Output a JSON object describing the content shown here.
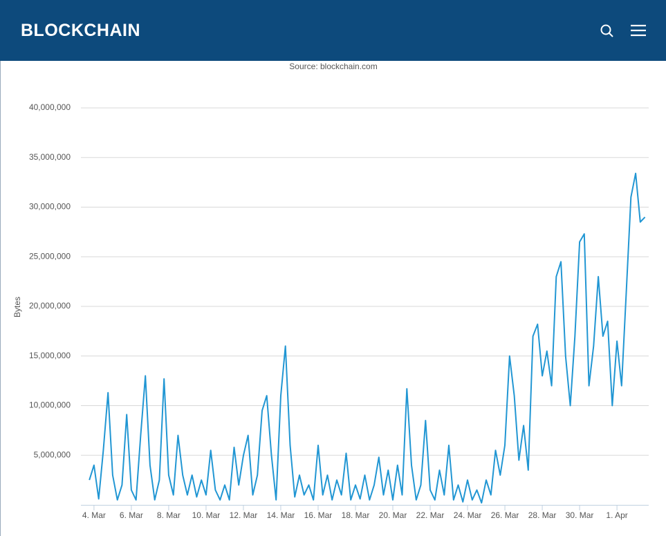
{
  "header": {
    "title": "BLOCKCHAIN"
  },
  "chart_data": {
    "type": "line",
    "subtitle": "Source: blockchain.com",
    "y_label": "Bytes",
    "xlim": [
      3.3,
      33.7
    ],
    "xticks": [
      {
        "value": 4,
        "label": "4. Mar"
      },
      {
        "value": 6,
        "label": "6. Mar"
      },
      {
        "value": 8,
        "label": "8. Mar"
      },
      {
        "value": 10,
        "label": "10. Mar"
      },
      {
        "value": 12,
        "label": "12. Mar"
      },
      {
        "value": 14,
        "label": "14. Mar"
      },
      {
        "value": 16,
        "label": "16. Mar"
      },
      {
        "value": 18,
        "label": "18. Mar"
      },
      {
        "value": 20,
        "label": "20. Mar"
      },
      {
        "value": 22,
        "label": "22. Mar"
      },
      {
        "value": 24,
        "label": "24. Mar"
      },
      {
        "value": 26,
        "label": "26. Mar"
      },
      {
        "value": 28,
        "label": "28. Mar"
      },
      {
        "value": 30,
        "label": "30. Mar"
      },
      {
        "value": 32,
        "label": "1. Apr"
      }
    ],
    "ylim": [
      0,
      40000000
    ],
    "yticks": [
      {
        "value": 5000000,
        "label": "5,000,000"
      },
      {
        "value": 10000000,
        "label": "10,000,000"
      },
      {
        "value": 15000000,
        "label": "15,000,000"
      },
      {
        "value": 20000000,
        "label": "20,000,000"
      },
      {
        "value": 25000000,
        "label": "25,000,000"
      },
      {
        "value": 30000000,
        "label": "30,000,000"
      },
      {
        "value": 35000000,
        "label": "35,000,000"
      },
      {
        "value": 40000000,
        "label": "40,000,000"
      }
    ],
    "grid": true,
    "x": [
      3.75,
      4,
      4.25,
      4.5,
      4.75,
      5,
      5.25,
      5.5,
      5.75,
      6,
      6.25,
      6.5,
      6.75,
      7,
      7.25,
      7.5,
      7.75,
      8,
      8.25,
      8.5,
      8.75,
      9,
      9.25,
      9.5,
      9.75,
      10,
      10.25,
      10.5,
      10.75,
      11,
      11.25,
      11.5,
      11.75,
      12,
      12.25,
      12.5,
      12.75,
      13,
      13.25,
      13.5,
      13.75,
      14,
      14.25,
      14.5,
      14.75,
      15,
      15.25,
      15.5,
      15.75,
      16,
      16.25,
      16.5,
      16.75,
      17,
      17.25,
      17.5,
      17.75,
      18,
      18.25,
      18.5,
      18.75,
      19,
      19.25,
      19.5,
      19.75,
      20,
      20.25,
      20.5,
      20.75,
      21,
      21.25,
      21.5,
      21.75,
      22,
      22.25,
      22.5,
      22.75,
      23,
      23.25,
      23.5,
      23.75,
      24,
      24.25,
      24.5,
      24.75,
      25,
      25.25,
      25.5,
      25.75,
      26,
      26.25,
      26.5,
      26.75,
      27,
      27.25,
      27.5,
      27.75,
      28,
      28.25,
      28.5,
      28.75,
      29,
      29.25,
      29.5,
      29.75,
      30,
      30.25,
      30.5,
      30.75,
      31,
      31.25,
      31.5,
      31.75,
      32,
      32.25,
      32.5,
      32.75,
      33,
      33.25,
      33.5
    ],
    "series": [
      {
        "name": "Bytes",
        "color": "#2196d3",
        "values": [
          2500000,
          4000000,
          600000,
          5500000,
          11300000,
          3000000,
          500000,
          2000000,
          9100000,
          1500000,
          500000,
          7000000,
          13000000,
          4000000,
          500000,
          2500000,
          12700000,
          3000000,
          1000000,
          7000000,
          3000000,
          1000000,
          3000000,
          800000,
          2500000,
          1000000,
          5500000,
          1500000,
          500000,
          2000000,
          500000,
          5800000,
          2000000,
          5000000,
          7000000,
          1000000,
          3000000,
          9500000,
          11000000,
          5000000,
          500000,
          11000000,
          16000000,
          6000000,
          800000,
          3000000,
          1000000,
          2000000,
          500000,
          6000000,
          1000000,
          3000000,
          500000,
          2500000,
          1000000,
          5200000,
          500000,
          2000000,
          600000,
          3000000,
          500000,
          2000000,
          4800000,
          1000000,
          3500000,
          500000,
          4000000,
          1000000,
          11700000,
          4000000,
          500000,
          2000000,
          8500000,
          1500000,
          500000,
          3500000,
          1000000,
          6000000,
          500000,
          2000000,
          300000,
          2500000,
          500000,
          1500000,
          200000,
          2500000,
          1000000,
          5500000,
          3000000,
          6000000,
          15000000,
          11000000,
          4500000,
          8000000,
          3500000,
          17000000,
          18200000,
          13000000,
          15500000,
          12000000,
          23000000,
          24500000,
          15000000,
          10000000,
          17000000,
          26500000,
          27300000,
          12000000,
          16000000,
          23000000,
          17000000,
          18500000,
          10000000,
          16500000,
          12000000,
          21500000,
          31000000,
          33400000,
          28500000,
          29000000
        ]
      }
    ]
  }
}
